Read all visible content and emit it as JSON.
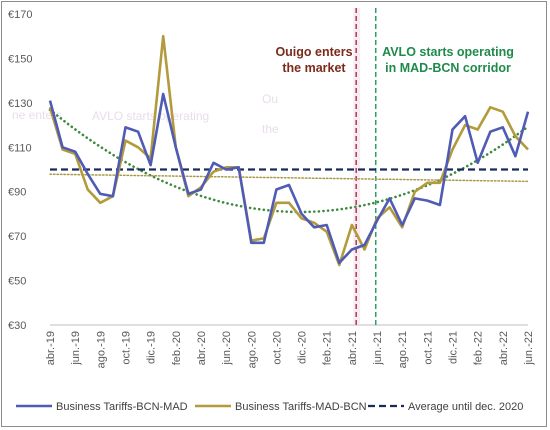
{
  "chart_data": {
    "type": "line",
    "categories": [
      "abr.-19",
      "may.-19",
      "jun.-19",
      "jul.-19",
      "ago.-19",
      "sept.-19",
      "oct.-19",
      "nov.-19",
      "dic.-19",
      "ene.-20",
      "feb.-20",
      "mar.-20",
      "abr.-20",
      "may.-20",
      "jun.-20",
      "jul.-20",
      "ago.-20",
      "sept.-20",
      "oct.-20",
      "nov.-20",
      "dic.-20",
      "ene.-21",
      "feb.-21",
      "mar.-21",
      "abr.-21",
      "may.-21",
      "jun.-21",
      "jul.-21",
      "ago.-21",
      "sept.-21",
      "oct.-21",
      "nov.-21",
      "dic.-21",
      "ene.-22",
      "feb.-22",
      "mar.-22",
      "abr.-22",
      "may.-22",
      "jun.-22"
    ],
    "x_tick_labels": [
      "abr.-19",
      "jun.-19",
      "ago.-19",
      "oct.-19",
      "dic.-19",
      "feb.-20",
      "abr.-20",
      "jun.-20",
      "ago.-20",
      "oct.-20",
      "dic.-20",
      "feb.-21",
      "abr.-21",
      "jun.-21",
      "ago.-21",
      "oct.-21",
      "dic.-21",
      "feb.-22",
      "abr.-22",
      "jun.-22"
    ],
    "y_ticks": [
      30,
      50,
      70,
      90,
      110,
      130,
      150,
      170
    ],
    "y_tick_labels": [
      "€30",
      "€50",
      "€70",
      "€90",
      "€110",
      "€130",
      "€150",
      "€170"
    ],
    "ylim": [
      30,
      170
    ],
    "series": [
      {
        "name": "Business Tariffs-BCN-MAD",
        "color": "#4f5bb5",
        "values": [
          131,
          110,
          108,
          98,
          89,
          88,
          119,
          117,
          102,
          134,
          110,
          89,
          91,
          103,
          100,
          101,
          67,
          67,
          91,
          93,
          80,
          74,
          75,
          58,
          64,
          66,
          77,
          87,
          75,
          87,
          86,
          84,
          118,
          124,
          103,
          117,
          119,
          106,
          126
        ]
      },
      {
        "name": "Business Tariffs-MAD-BCN",
        "color": "#b39a3b",
        "values": [
          128,
          109,
          107,
          91,
          85,
          88,
          113,
          110,
          105,
          160,
          110,
          88,
          92,
          99,
          101,
          101,
          68,
          69,
          85,
          85,
          78,
          76,
          72,
          57,
          75,
          64,
          78,
          83,
          74,
          90,
          94,
          94,
          109,
          120,
          118,
          128,
          126,
          115,
          109
        ]
      },
      {
        "name": "Average until dec. 2020",
        "color": "#1a2a5e",
        "values": [
          100,
          100,
          100,
          100,
          100,
          100,
          100,
          100,
          100,
          100,
          100,
          100,
          100,
          100,
          100,
          100,
          100,
          100,
          100,
          100,
          100,
          100,
          100,
          100,
          100,
          100,
          100,
          100,
          100,
          100,
          100,
          100,
          100,
          100,
          100,
          100,
          100,
          100,
          100
        ]
      }
    ],
    "annotations": [
      {
        "text_lines": [
          "Ouigo enters",
          "the market"
        ],
        "color": "#7b2a1a",
        "at": "may.-21"
      },
      {
        "text_lines": [
          "AVLO starts operating",
          "in MAD-BCN corridor"
        ],
        "color": "#1f8a4c",
        "at": "jun.-21"
      }
    ],
    "legend_position": "bottom",
    "grid": false,
    "ghost_text": [
      "Ou",
      "the",
      "ne enters",
      "AVLO starts operating"
    ]
  }
}
